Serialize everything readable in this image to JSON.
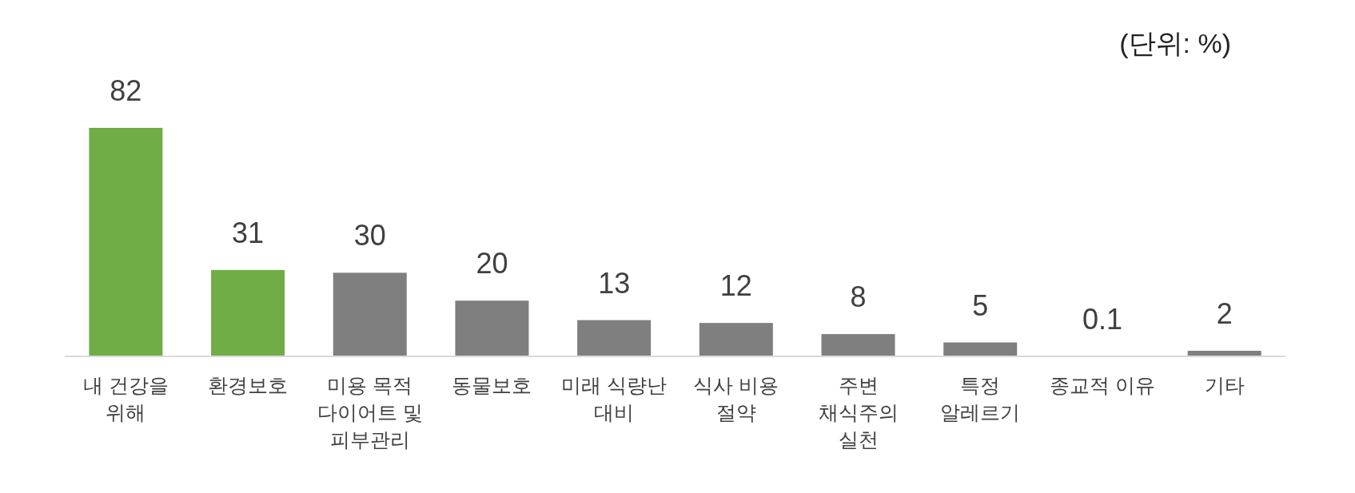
{
  "chart_data": {
    "type": "bar",
    "categories": [
      "내 건강을\n위해",
      "환경보호",
      "미용 목적\n다이어트 및\n피부관리",
      "동물보호",
      "미래 식량난\n대비",
      "식사 비용\n절약",
      "주변\n채식주의\n실천",
      "특정\n알레르기",
      "종교적 이유",
      "기타"
    ],
    "values": [
      82,
      31,
      30,
      20,
      13,
      12,
      8,
      5,
      0.1,
      2
    ],
    "colors": [
      "#70ad47",
      "#70ad47",
      "#7f7f7f",
      "#7f7f7f",
      "#7f7f7f",
      "#7f7f7f",
      "#7f7f7f",
      "#7f7f7f",
      "#7f7f7f",
      "#7f7f7f"
    ],
    "data_labels": true,
    "annotations": [
      "(단위: %)"
    ]
  }
}
